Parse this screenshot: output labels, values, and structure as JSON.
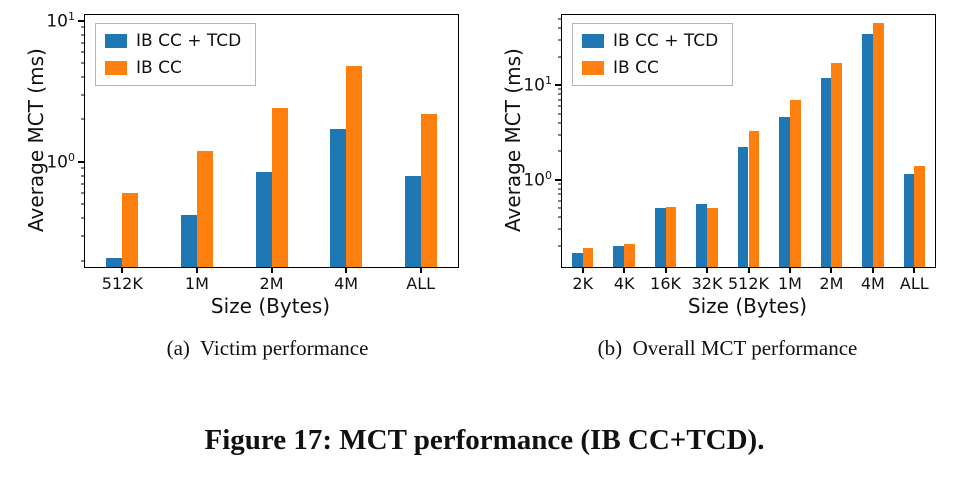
{
  "figure": {
    "caption_a": "(a)  Victim performance",
    "caption_b": "(b)  Overall MCT performance",
    "title": "Figure 17: MCT performance (IB CC+TCD)."
  },
  "colors": {
    "series_blue": "#1f77b4",
    "series_orange": "#ff7f0e"
  },
  "chart_data": [
    {
      "type": "bar",
      "title": "(a) Victim performance",
      "categories": [
        "512K",
        "1M",
        "2M",
        "4M",
        "ALL"
      ],
      "series": [
        {
          "name": "IB CC + TCD",
          "color": "#1f77b4",
          "values": [
            0.21,
            0.42,
            0.85,
            1.7,
            0.8
          ]
        },
        {
          "name": "IB CC",
          "color": "#ff7f0e",
          "values": [
            0.6,
            1.2,
            2.4,
            4.8,
            2.2
          ]
        }
      ],
      "xlabel": "Size (Bytes)",
      "ylabel": "Average MCT (ms)",
      "yscale": "log",
      "ylim": [
        0.18,
        11
      ],
      "yticks": [
        1,
        10
      ],
      "grid": false,
      "legend_position": "upper left"
    },
    {
      "type": "bar",
      "title": "(b) Overall MCT performance",
      "categories": [
        "2K",
        "4K",
        "16K",
        "32K",
        "512K",
        "1M",
        "2M",
        "4M",
        "ALL"
      ],
      "series": [
        {
          "name": "IB CC + TCD",
          "color": "#1f77b4",
          "values": [
            0.17,
            0.2,
            0.5,
            0.55,
            2.2,
            4.6,
            12,
            35,
            1.15
          ]
        },
        {
          "name": "IB CC",
          "color": "#ff7f0e",
          "values": [
            0.19,
            0.21,
            0.52,
            0.5,
            3.3,
            7,
            17,
            45,
            1.4
          ]
        }
      ],
      "xlabel": "Size (Bytes)",
      "ylabel": "Average MCT (ms)",
      "yscale": "log",
      "ylim": [
        0.12,
        55
      ],
      "yticks": [
        1,
        10
      ],
      "grid": false,
      "legend_position": "upper left"
    }
  ]
}
